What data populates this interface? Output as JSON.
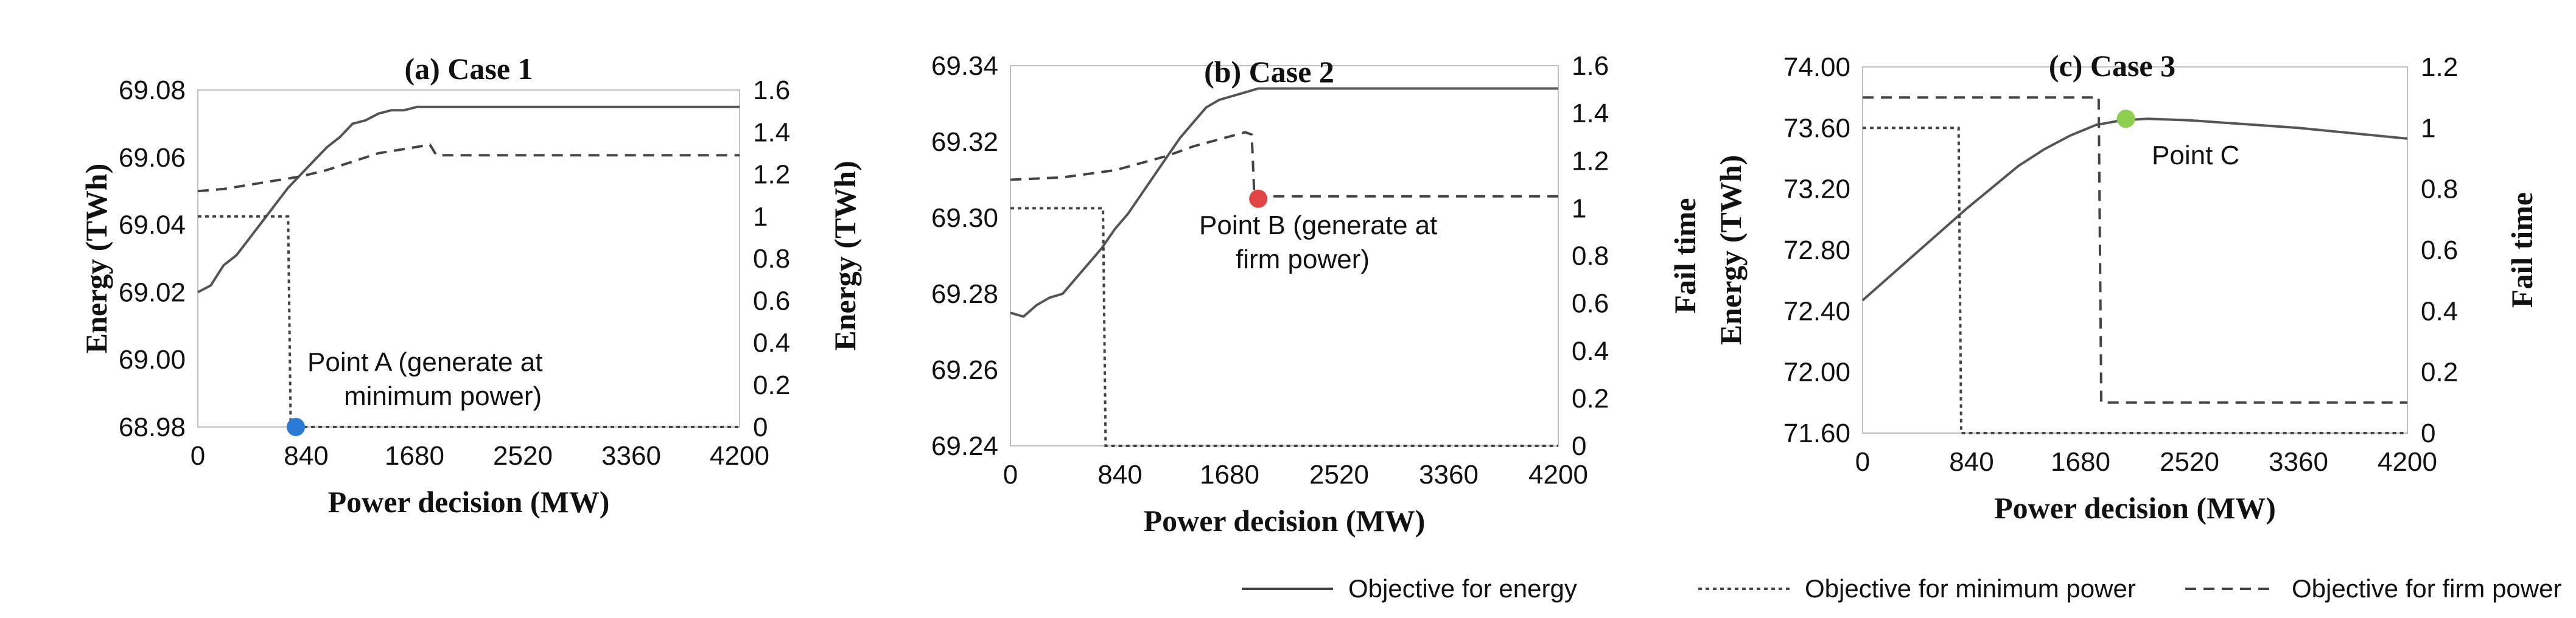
{
  "chart_data": [
    {
      "type": "line",
      "title": "(a) Case 1",
      "xlabel": "Power decision (MW)",
      "ylabel": "Energy (TWh)",
      "y2label": "",
      "xlim": [
        0,
        4200
      ],
      "ylim": [
        68.98,
        69.08
      ],
      "y2lim": [
        0,
        1.6
      ],
      "xticks": [
        "0",
        "840",
        "1680",
        "2520",
        "3360",
        "4200"
      ],
      "yticks": [
        "68.98",
        "69.00",
        "69.02",
        "69.04",
        "69.06",
        "69.08"
      ],
      "y2ticks": [
        "0",
        "0.2",
        "0.4",
        "0.6",
        "0.8",
        "1",
        "1.2",
        "1.4",
        "1.6"
      ],
      "series": [
        {
          "key": "energy",
          "axis": "left",
          "style": "solid",
          "x": [
            0,
            100,
            200,
            300,
            400,
            500,
            600,
            700,
            800,
            900,
            1000,
            1100,
            1200,
            1300,
            1400,
            1500,
            1600,
            1700,
            1800,
            4200
          ],
          "y": [
            69.02,
            69.022,
            69.028,
            69.031,
            69.036,
            69.041,
            69.046,
            69.051,
            69.055,
            69.059,
            69.063,
            69.066,
            69.07,
            69.071,
            69.073,
            69.074,
            69.074,
            69.075,
            69.075,
            69.075
          ]
        },
        {
          "key": "min",
          "axis": "right",
          "style": "dotted",
          "x": [
            0,
            700,
            720,
            4200
          ],
          "y": [
            1.0,
            1.0,
            0,
            0
          ]
        },
        {
          "key": "firm",
          "axis": "right",
          "style": "dashed",
          "x": [
            0,
            200,
            400,
            600,
            800,
            1000,
            1200,
            1400,
            1600,
            1800,
            1850,
            2000,
            4200
          ],
          "y": [
            1.12,
            1.13,
            1.15,
            1.17,
            1.19,
            1.22,
            1.26,
            1.3,
            1.32,
            1.34,
            1.29,
            1.29,
            1.29
          ]
        }
      ],
      "marker": {
        "x": 760,
        "y": 68.98,
        "axis": "left",
        "color": "#2b7bd6"
      },
      "annotation": [
        "Point A  (generate at",
        "minimum power)"
      ]
    },
    {
      "type": "line",
      "title": "(b) Case 2",
      "xlabel": "Power decision (MW)",
      "ylabel": "Energy (TWh)",
      "y2label": "Fail time",
      "xlim": [
        0,
        4200
      ],
      "ylim": [
        69.24,
        69.34
      ],
      "y2lim": [
        0,
        1.6
      ],
      "xticks": [
        "0",
        "840",
        "1680",
        "2520",
        "3360",
        "4200"
      ],
      "yticks": [
        "69.24",
        "69.26",
        "69.28",
        "69.30",
        "69.32",
        "69.34"
      ],
      "y2ticks": [
        "0",
        "0.2",
        "0.4",
        "0.6",
        "0.8",
        "1",
        "1.2",
        "1.4",
        "1.6"
      ],
      "series": [
        {
          "key": "energy",
          "axis": "left",
          "style": "solid",
          "x": [
            0,
            100,
            200,
            300,
            400,
            500,
            600,
            700,
            800,
            900,
            1000,
            1100,
            1200,
            1300,
            1400,
            1500,
            1600,
            1700,
            1800,
            1900,
            2000,
            4200
          ],
          "y": [
            69.275,
            69.274,
            69.277,
            69.279,
            69.28,
            69.284,
            69.288,
            69.292,
            69.297,
            69.301,
            69.306,
            69.311,
            69.316,
            69.321,
            69.325,
            69.329,
            69.331,
            69.332,
            69.333,
            69.334,
            69.334,
            69.334
          ]
        },
        {
          "key": "min",
          "axis": "right",
          "style": "dotted",
          "x": [
            0,
            710,
            730,
            4200
          ],
          "y": [
            1.0,
            1.0,
            0,
            0
          ]
        },
        {
          "key": "firm",
          "axis": "right",
          "style": "dashed",
          "x": [
            0,
            400,
            800,
            1000,
            1200,
            1400,
            1600,
            1800,
            1850,
            1870,
            4200
          ],
          "y": [
            1.12,
            1.13,
            1.16,
            1.19,
            1.22,
            1.26,
            1.29,
            1.32,
            1.31,
            1.05,
            1.05
          ]
        }
      ],
      "marker": {
        "x": 1900,
        "y": 69.305,
        "axis": "left",
        "color": "#e04444"
      },
      "annotation": [
        "Point B  (generate at",
        "firm power)"
      ]
    },
    {
      "type": "line",
      "title": "(c) Case 3",
      "xlabel": "Power decision (MW)",
      "ylabel": "Energy (TWh)",
      "y2label": "Fail time",
      "xlim": [
        0,
        4200
      ],
      "ylim": [
        71.6,
        74.0
      ],
      "y2lim": [
        0,
        1.2
      ],
      "xticks": [
        "0",
        "840",
        "1680",
        "2520",
        "3360",
        "4200"
      ],
      "yticks": [
        "71.60",
        "72.00",
        "72.40",
        "72.80",
        "73.20",
        "73.60",
        "74.00"
      ],
      "y2ticks": [
        "0",
        "0.2",
        "0.4",
        "0.6",
        "0.8",
        "1",
        "1.2"
      ],
      "series": [
        {
          "key": "energy",
          "axis": "left",
          "style": "solid",
          "x": [
            0,
            200,
            400,
            600,
            800,
            1000,
            1200,
            1400,
            1600,
            1800,
            2000,
            2200,
            2520,
            3360,
            4200
          ],
          "y": [
            72.47,
            72.62,
            72.77,
            72.92,
            73.07,
            73.21,
            73.35,
            73.46,
            73.55,
            73.62,
            73.65,
            73.66,
            73.65,
            73.6,
            73.53
          ]
        },
        {
          "key": "min",
          "axis": "right",
          "style": "dotted",
          "x": [
            0,
            740,
            760,
            4200
          ],
          "y": [
            1.0,
            1.0,
            0,
            0
          ]
        },
        {
          "key": "firm",
          "axis": "right",
          "style": "dashed",
          "x": [
            0,
            1820,
            1840,
            4200
          ],
          "y": [
            1.1,
            1.1,
            0.1,
            0.1
          ]
        }
      ],
      "marker": {
        "x": 2030,
        "y": 73.66,
        "axis": "left",
        "color": "#8fcf4f"
      },
      "annotation": [
        "Point C"
      ]
    }
  ],
  "legend": [
    {
      "key": "energy",
      "label": "Objective for energy",
      "style": "solid"
    },
    {
      "key": "min",
      "label": "Objective for minimum power",
      "style": "dotted"
    },
    {
      "key": "firm",
      "label": "Objective for firm power",
      "style": "dashed"
    }
  ]
}
